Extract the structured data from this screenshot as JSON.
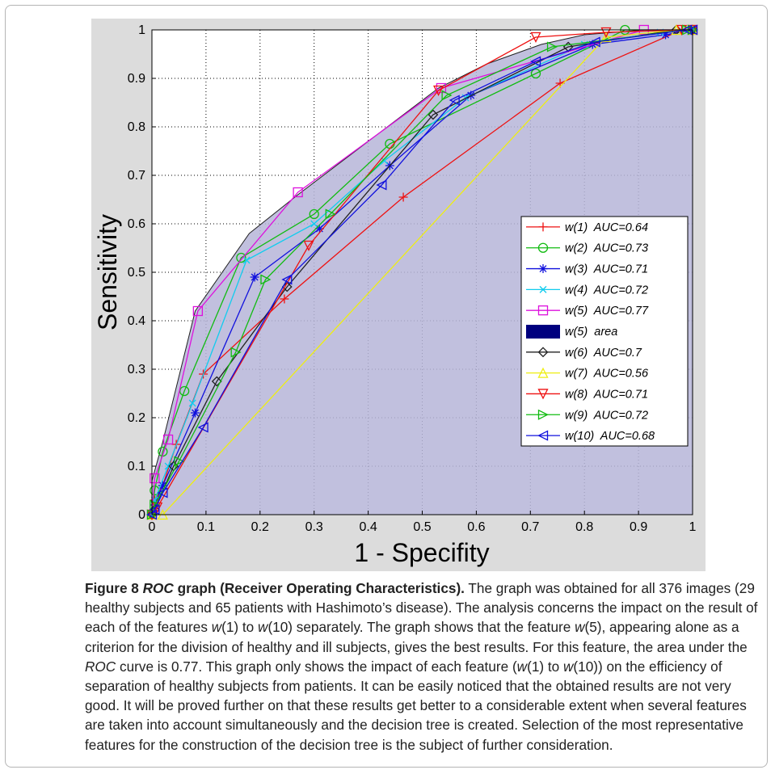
{
  "chart_data": {
    "type": "line",
    "xlabel": "1 - Specifity",
    "ylabel": "Sensitivity",
    "xlim": [
      0,
      1
    ],
    "ylim": [
      0,
      1
    ],
    "xticks": [
      "0",
      "0.1",
      "0.2",
      "0.3",
      "0.4",
      "0.5",
      "0.6",
      "0.7",
      "0.8",
      "0.9",
      "1"
    ],
    "yticks": [
      "0",
      "0.1",
      "0.2",
      "0.3",
      "0.4",
      "0.5",
      "0.6",
      "0.7",
      "0.8",
      "0.9",
      "1"
    ],
    "grid": true,
    "legend_position": "right",
    "area": {
      "name": "w(5) area",
      "color": "#00007f",
      "x": [
        0,
        0,
        0.02,
        0.08,
        0.18,
        0.27,
        0.4,
        0.53,
        0.62,
        0.72,
        0.8,
        0.91,
        0.97,
        1,
        1
      ],
      "y": [
        0,
        0.07,
        0.15,
        0.42,
        0.58,
        0.66,
        0.77,
        0.88,
        0.93,
        0.97,
        0.99,
        1.0,
        1.0,
        1.0,
        0
      ]
    },
    "series": [
      {
        "name": "w(1)  AUC=0.64",
        "color": "#ee1111",
        "marker": "plus",
        "x": [
          0,
          0.005,
          0.02,
          0.045,
          0.095,
          0.245,
          0.465,
          0.755,
          0.98,
          1
        ],
        "y": [
          0,
          0.03,
          0.06,
          0.145,
          0.29,
          0.445,
          0.655,
          0.89,
          1.0,
          1
        ]
      },
      {
        "name": "w(2)  AUC=0.73",
        "color": "#11bb11",
        "marker": "circle",
        "x": [
          0,
          0.005,
          0.02,
          0.06,
          0.165,
          0.3,
          0.44,
          0.71,
          0.875,
          1
        ],
        "y": [
          0,
          0.05,
          0.13,
          0.255,
          0.53,
          0.62,
          0.765,
          0.91,
          1.0,
          1
        ]
      },
      {
        "name": "w(3)  AUC=0.71",
        "color": "#1111dd",
        "marker": "star",
        "x": [
          0,
          0.005,
          0.02,
          0.08,
          0.19,
          0.31,
          0.44,
          0.59,
          0.815,
          0.95,
          1
        ],
        "y": [
          0,
          0.02,
          0.06,
          0.21,
          0.49,
          0.59,
          0.72,
          0.865,
          0.97,
          0.99,
          1
        ]
      },
      {
        "name": "w(4)  AUC=0.72",
        "color": "#11ccee",
        "marker": "x",
        "x": [
          0,
          0.005,
          0.03,
          0.075,
          0.175,
          0.3,
          0.43,
          0.58,
          0.8,
          0.94,
          1
        ],
        "y": [
          0,
          0.03,
          0.1,
          0.23,
          0.525,
          0.6,
          0.73,
          0.86,
          0.97,
          0.995,
          1
        ]
      },
      {
        "name": "w(5)  AUC=0.77",
        "color": "#dd11dd",
        "marker": "square",
        "x": [
          0,
          0.005,
          0.03,
          0.085,
          0.27,
          0.535,
          0.91,
          1
        ],
        "y": [
          0,
          0.075,
          0.155,
          0.42,
          0.665,
          0.88,
          1.0,
          1
        ]
      },
      {
        "name": "w(6)  AUC=0.7",
        "color": "#222222",
        "marker": "diamond",
        "x": [
          0,
          0.005,
          0.04,
          0.12,
          0.25,
          0.52,
          0.77,
          0.97,
          1
        ],
        "y": [
          0,
          0.01,
          0.1,
          0.275,
          0.47,
          0.825,
          0.965,
          1.0,
          1
        ]
      },
      {
        "name": "w(7)  AUC=0.56",
        "color": "#eeee11",
        "marker": "triangle-up",
        "x": [
          0,
          0.02,
          0.84,
          0.97,
          1
        ],
        "y": [
          0,
          0.0,
          0.985,
          1.0,
          1
        ]
      },
      {
        "name": "w(8)  AUC=0.71",
        "color": "#ee1111",
        "marker": "triangle-down",
        "x": [
          0,
          0.01,
          0.29,
          0.53,
          0.71,
          0.84,
          0.98,
          1
        ],
        "y": [
          0,
          0.015,
          0.555,
          0.875,
          0.985,
          0.995,
          1.0,
          1
        ]
      },
      {
        "name": "w(9)  AUC=0.72",
        "color": "#11bb11",
        "marker": "triangle-right",
        "x": [
          0,
          0.005,
          0.05,
          0.155,
          0.21,
          0.33,
          0.545,
          0.74,
          0.99,
          1
        ],
        "y": [
          0,
          0.02,
          0.11,
          0.335,
          0.485,
          0.62,
          0.865,
          0.965,
          1.0,
          1
        ]
      },
      {
        "name": "w(10)  AUC=0.68",
        "color": "#1111dd",
        "marker": "triangle-left",
        "x": [
          0,
          0.005,
          0.02,
          0.095,
          0.25,
          0.425,
          0.56,
          0.71,
          0.82,
          0.99,
          1
        ],
        "y": [
          0,
          0.01,
          0.045,
          0.18,
          0.485,
          0.68,
          0.855,
          0.935,
          0.975,
          1.0,
          1
        ]
      }
    ],
    "legend_entries": [
      {
        "label": "w(1)  AUC=0.64",
        "series": 0
      },
      {
        "label": "w(2)  AUC=0.73",
        "series": 1
      },
      {
        "label": "w(3)  AUC=0.71",
        "series": 2
      },
      {
        "label": "w(4)  AUC=0.72",
        "series": 3
      },
      {
        "label": "w(5)  AUC=0.77",
        "series": 4
      },
      {
        "label": "w(5)  area",
        "area": true
      },
      {
        "label": "w(6)  AUC=0.7",
        "series": 5
      },
      {
        "label": "w(7)  AUC=0.56",
        "series": 6
      },
      {
        "label": "w(8)  AUC=0.71",
        "series": 7
      },
      {
        "label": "w(9)  AUC=0.72",
        "series": 8
      },
      {
        "label": "w(10)  AUC=0.68",
        "series": 9
      }
    ]
  },
  "caption": {
    "label": "Figure 8",
    "title_em": "ROC",
    "title_rest": " graph (Receiver Operating Characteristics).",
    "text_1": " The graph was obtained for all 376 images (29 healthy subjects and 65 patients with Hashimoto’s disease). The analysis concerns the impact on the result of each of the features ",
    "w": "w",
    "text_2": "(1) to ",
    "text_3": "(10) separately. The graph shows that the feature ",
    "text_4": "(5), appearing alone as a criterion for the division of healthy and ill subjects, gives the best results. For this feature, the area under the ",
    "roc": "ROC",
    "text_5": " curve is 0.77. This graph only shows the impact of each feature (",
    "text_6": "(1) to ",
    "text_7": "(10)) on the efficiency of separation of healthy subjects from patients. It can be easily noticed that the obtained results are not very good. It will be proved further on that these results get better to a considerable extent when several features are taken into account simultaneously and the decision tree is created. Selection of the most representative features for the construction of the decision tree is the subject of further consideration."
  }
}
